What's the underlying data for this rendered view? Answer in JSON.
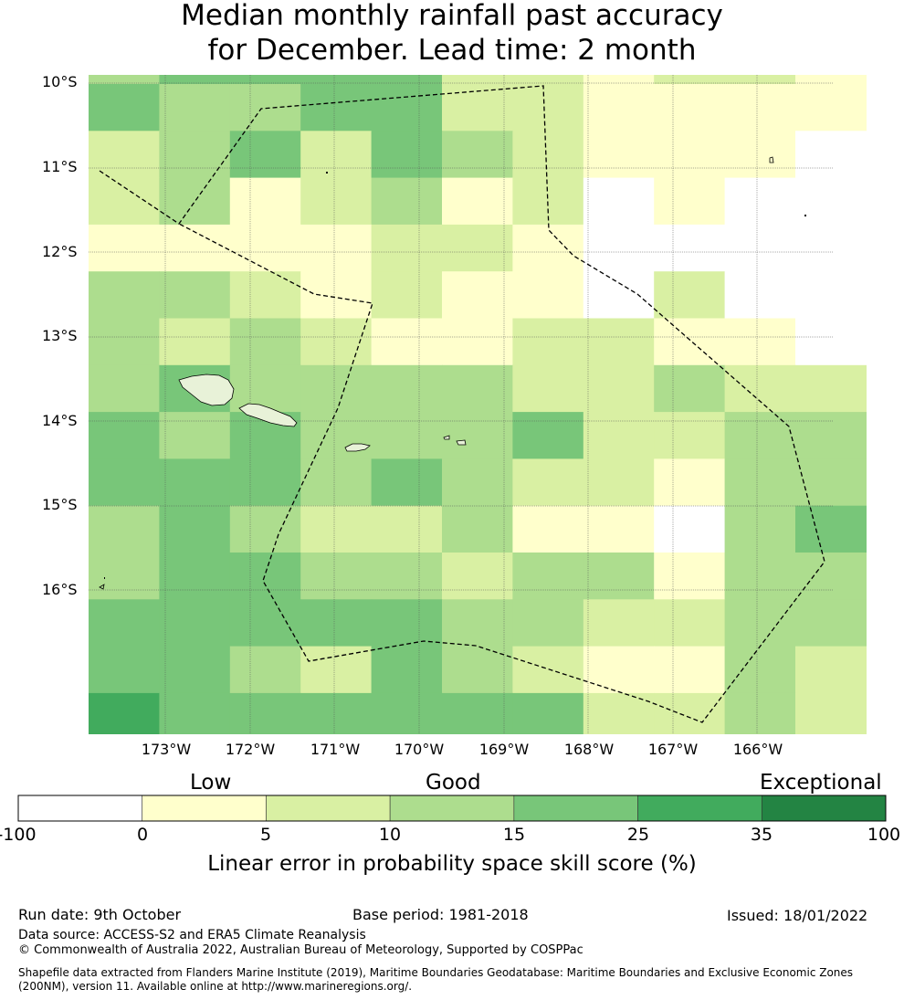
{
  "title": {
    "line1": "Median monthly rainfall past accuracy",
    "line2": "for December. Lead time: 2 month"
  },
  "map": {
    "lat_labels": [
      "10°S",
      "11°S",
      "12°S",
      "13°S",
      "14°S",
      "15°S",
      "16°S"
    ],
    "lon_labels": [
      "173°W",
      "172°W",
      "171°W",
      "170°W",
      "169°W",
      "168°W",
      "167°W",
      "166°W"
    ],
    "grid_legend": "Each grid row lists the skill category index per column (0 = below 0 / white, 1 = 0-5, 2 = 5-10, 3 = 10-15, 4 = 15-25, 5 = 25-35, 6 = 35-100)",
    "grid": [
      [
        3,
        4,
        4,
        4,
        4,
        2,
        2,
        1,
        2,
        2,
        1
      ],
      [
        4,
        3,
        3,
        4,
        4,
        2,
        2,
        1,
        1,
        1,
        1
      ],
      [
        2,
        3,
        4,
        2,
        4,
        3,
        2,
        1,
        1,
        1,
        0
      ],
      [
        2,
        3,
        1,
        2,
        3,
        1,
        2,
        0,
        1,
        0,
        0
      ],
      [
        1,
        1,
        1,
        1,
        2,
        2,
        1,
        0,
        0,
        0,
        0
      ],
      [
        3,
        3,
        2,
        1,
        2,
        1,
        1,
        0,
        2,
        0,
        0
      ],
      [
        3,
        2,
        3,
        2,
        1,
        1,
        2,
        2,
        1,
        1,
        0
      ],
      [
        3,
        4,
        3,
        3,
        3,
        3,
        2,
        2,
        3,
        2,
        2
      ],
      [
        4,
        3,
        4,
        3,
        3,
        3,
        4,
        2,
        2,
        3,
        3
      ],
      [
        4,
        4,
        4,
        3,
        4,
        3,
        2,
        2,
        1,
        3,
        3
      ],
      [
        3,
        4,
        3,
        2,
        2,
        3,
        1,
        1,
        0,
        3,
        4
      ],
      [
        3,
        4,
        4,
        3,
        3,
        2,
        3,
        3,
        1,
        3,
        3
      ],
      [
        4,
        4,
        4,
        4,
        4,
        3,
        3,
        2,
        2,
        3,
        3
      ],
      [
        4,
        4,
        3,
        2,
        4,
        3,
        2,
        1,
        1,
        3,
        2
      ],
      [
        5,
        4,
        4,
        4,
        4,
        4,
        4,
        2,
        2,
        3,
        2
      ]
    ]
  },
  "colorbar": {
    "categories": [
      "Low",
      "Good",
      "Exceptional"
    ],
    "ticks": [
      "-100",
      "0",
      "5",
      "10",
      "15",
      "25",
      "35",
      "100"
    ],
    "colors": [
      "#ffffff",
      "#ffffcc",
      "#d9f0a3",
      "#addd8e",
      "#78c679",
      "#41ab5d",
      "#238443"
    ],
    "label": "Linear error in probability space skill score (%)"
  },
  "footer": {
    "run_date": "Run date: 9th October",
    "base_period": "Base period: 1981-2018",
    "issued": "Issued: 18/01/2022",
    "data_source": "Data source: ACCESS-S2 and ERA5 Climate Reanalysis",
    "copyright": "© Commonwealth of Australia 2022, Australian Bureau of Meteorology, Supported by COSPPac",
    "shapefile_line1": "Shapefile data extracted from Flanders Marine Institute (2019), Maritime Boundaries Geodatabase: Maritime Boundaries and Exclusive Economic Zones",
    "shapefile_line2": "(200NM), version 11. Available online at http://www.marineregions.org/."
  }
}
